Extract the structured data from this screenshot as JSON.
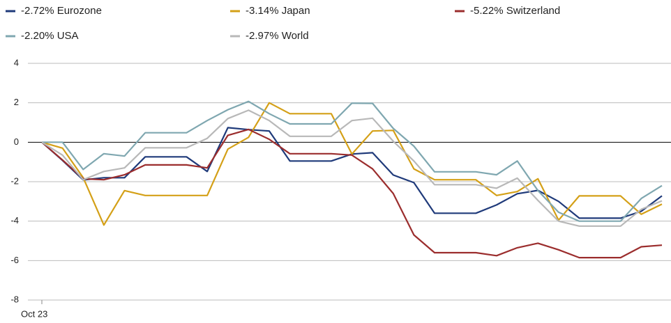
{
  "chart_data": {
    "type": "line",
    "categories": [
      "Oct 23",
      null,
      null,
      null,
      null,
      null,
      null,
      null,
      null,
      null,
      null,
      null,
      null,
      null,
      null,
      null,
      null,
      null,
      null,
      null,
      null,
      null,
      null,
      null,
      null,
      null,
      null,
      null,
      null,
      null,
      null
    ],
    "series": [
      {
        "name": "-2.72%  Eurozone",
        "color": "#1f3a7a",
        "values": [
          0,
          -0.92,
          -1.91,
          -1.8,
          -1.8,
          -0.74,
          -0.74,
          -0.74,
          -1.48,
          0.74,
          0.64,
          0.57,
          -0.95,
          -0.95,
          -0.95,
          -0.6,
          -0.53,
          -1.66,
          -2.05,
          -3.6,
          -3.6,
          -3.6,
          -3.18,
          -2.61,
          -2.44,
          -3.0,
          -3.85,
          -3.85,
          -3.85,
          -3.5,
          -2.72
        ]
      },
      {
        "name": "-3.14%  Japan",
        "color": "#d4a017",
        "values": [
          0,
          -0.3,
          -1.8,
          -4.2,
          -2.45,
          -2.7,
          -2.7,
          -2.7,
          -2.7,
          -0.35,
          0.25,
          2.0,
          1.45,
          1.45,
          1.45,
          -0.6,
          0.57,
          0.6,
          -1.35,
          -1.9,
          -1.9,
          -1.9,
          -2.7,
          -2.5,
          -1.85,
          -3.95,
          -2.72,
          -2.72,
          -2.72,
          -3.65,
          -3.14
        ]
      },
      {
        "name": "-5.22%  Switzerland",
        "color": "#9b2d2d",
        "values": [
          0,
          -0.9,
          -1.85,
          -1.9,
          -1.65,
          -1.15,
          -1.15,
          -1.15,
          -1.3,
          0.35,
          0.65,
          0.15,
          -0.58,
          -0.58,
          -0.58,
          -0.65,
          -1.35,
          -2.6,
          -4.7,
          -5.6,
          -5.6,
          -5.6,
          -5.75,
          -5.35,
          -5.12,
          -5.45,
          -5.85,
          -5.85,
          -5.85,
          -5.3,
          -5.22
        ]
      },
      {
        "name": "-2.20%  USA",
        "color": "#7fa7b0",
        "values": [
          0,
          0,
          -1.38,
          -0.58,
          -0.7,
          0.48,
          0.48,
          0.48,
          1.1,
          1.65,
          2.07,
          1.45,
          0.93,
          0.93,
          0.93,
          1.98,
          1.97,
          0.7,
          -0.2,
          -1.5,
          -1.5,
          -1.5,
          -1.65,
          -0.95,
          -2.45,
          -3.55,
          -4.0,
          -4.0,
          -4.0,
          -2.85,
          -2.2
        ]
      },
      {
        "name": "-2.97%  World",
        "color": "#b8b8b8",
        "values": [
          0,
          -0.65,
          -1.9,
          -1.48,
          -1.3,
          -0.28,
          -0.28,
          -0.28,
          0.2,
          1.2,
          1.62,
          1.1,
          0.3,
          0.3,
          0.3,
          1.1,
          1.22,
          0.05,
          -0.95,
          -2.15,
          -2.15,
          -2.15,
          -2.33,
          -1.82,
          -2.95,
          -4.0,
          -4.25,
          -4.25,
          -4.25,
          -3.4,
          -2.97
        ]
      }
    ],
    "ylim": [
      -8,
      4
    ],
    "yticks": [
      -8,
      -6,
      -4,
      -2,
      0,
      2,
      4
    ],
    "grid": true
  }
}
